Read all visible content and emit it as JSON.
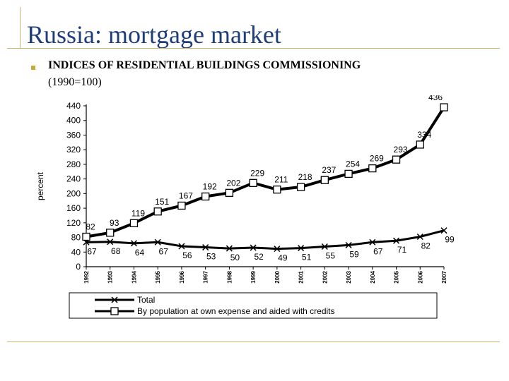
{
  "slide": {
    "title": "Russia: mortgage market",
    "subtitle_bold": "INDICES OF RESIDENTIAL BUILDINGS COMMISSIONING",
    "subtitle_note": "(1990=100)"
  },
  "colors": {
    "title": "#1f3d7a",
    "rule": "#c8b46a",
    "bullet": "#c9a93a",
    "series": "#000000"
  },
  "chart_data": {
    "type": "line",
    "title": "",
    "xlabel": "",
    "ylabel": "percent",
    "x": [
      "1992",
      "1993",
      "1994",
      "1995",
      "1996",
      "1997",
      "1998",
      "1999",
      "2000",
      "2001",
      "2002",
      "2003",
      "2004",
      "2005",
      "2006",
      "2007"
    ],
    "ylim": [
      0,
      440
    ],
    "yticks": [
      0,
      40,
      80,
      120,
      160,
      200,
      240,
      280,
      320,
      360,
      400,
      440
    ],
    "grid": false,
    "legend_position": "bottom",
    "series": [
      {
        "name": "Total",
        "marker": "x",
        "values": [
          67,
          68,
          64,
          67,
          56,
          53,
          50,
          52,
          49,
          51,
          55,
          59,
          67,
          71,
          82,
          99
        ]
      },
      {
        "name": "By population at own expense and aided with credits",
        "marker": "square",
        "values": [
          82,
          93,
          119,
          151,
          167,
          192,
          202,
          229,
          211,
          218,
          237,
          254,
          269,
          293,
          334,
          436
        ]
      }
    ]
  }
}
